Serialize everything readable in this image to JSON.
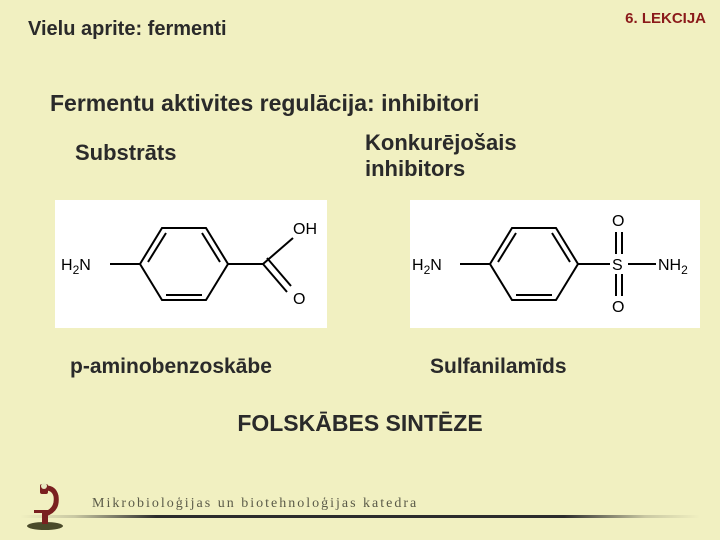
{
  "header": {
    "left": "Vielu aprite: fermenti",
    "right": "6. LEKCIJA"
  },
  "title": "Fermentu aktivites regulācija: inhibitori",
  "columns": {
    "left": {
      "heading": "Substrāts",
      "caption": "p-aminobenzoskābe"
    },
    "right": {
      "heading": "Konkurējošais\ninhibitors",
      "caption": "Sulfanilamīds"
    }
  },
  "bottom_title": "FOLSKĀBES SINTĒZE",
  "footer_text": "Mikrobioloģijas un biotehnoloģijas katedra",
  "chem_left": {
    "labels": {
      "nh2": "H₂N",
      "oh": "OH",
      "o": "O"
    },
    "colors": {
      "bg": "#ffffff",
      "stroke": "#000000",
      "text": "#000000"
    },
    "stroke_width": 2,
    "font_size": 16
  },
  "chem_right": {
    "labels": {
      "nh2_left": "H₂N",
      "nh2_right": "NH₂",
      "o_top": "O",
      "o_bot": "O",
      "s": "S"
    },
    "colors": {
      "bg": "#ffffff",
      "stroke": "#000000",
      "text": "#000000"
    },
    "stroke_width": 2,
    "font_size": 16
  },
  "microscope": {
    "body_color": "#7a2020",
    "base_color": "#4a4a2a",
    "lens_color": "#e8e8c0"
  }
}
